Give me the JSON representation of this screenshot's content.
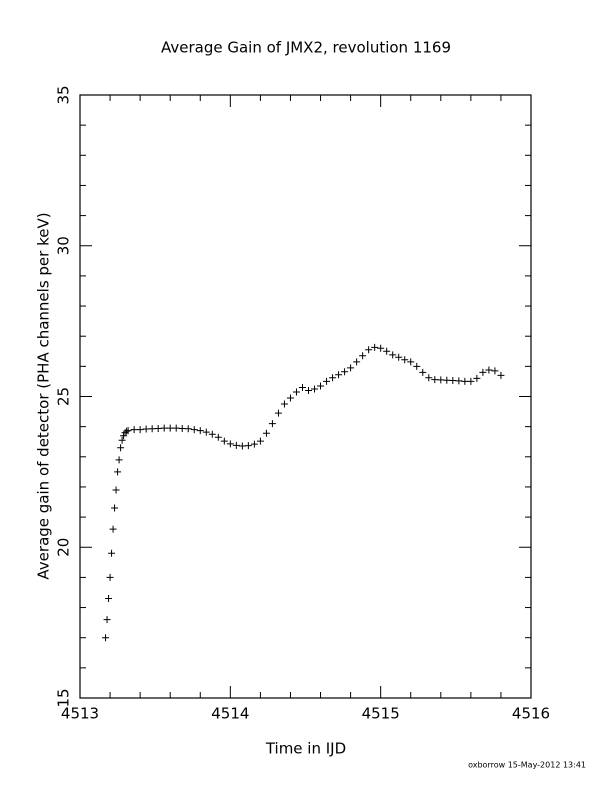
{
  "chart_data": {
    "type": "scatter",
    "title": "Average Gain of JMX2, revolution 1169",
    "x_label": "Time in IJD",
    "y_label": "Average gain of detector (PHA channels per keV)",
    "footer": "oxborrow 15-May-2012 13:41",
    "xlim": [
      4513,
      4516
    ],
    "ylim": [
      15,
      35
    ],
    "xticks": [
      4513,
      4514,
      4515,
      4516
    ],
    "yticks": [
      15,
      20,
      25,
      30,
      35
    ],
    "x_minor_ticks": [
      4513.2,
      4513.4,
      4513.6,
      4513.8,
      4514.2,
      4514.4,
      4514.6,
      4514.8,
      4515.2,
      4515.4,
      4515.6,
      4515.8
    ],
    "y_minor_ticks": [
      16,
      17,
      18,
      19,
      21,
      22,
      23,
      24,
      26,
      27,
      28,
      29,
      31,
      32,
      33,
      34
    ],
    "marker": "plus",
    "color": "#000000",
    "x": [
      4513.17,
      4513.18,
      4513.19,
      4513.2,
      4513.21,
      4513.22,
      4513.23,
      4513.24,
      4513.25,
      4513.26,
      4513.27,
      4513.28,
      4513.29,
      4513.3,
      4513.31,
      4513.32,
      4513.36,
      4513.4,
      4513.44,
      4513.48,
      4513.52,
      4513.56,
      4513.6,
      4513.64,
      4513.68,
      4513.72,
      4513.76,
      4513.8,
      4513.84,
      4513.88,
      4513.92,
      4513.96,
      4514.0,
      4514.04,
      4514.08,
      4514.12,
      4514.16,
      4514.2,
      4514.24,
      4514.28,
      4514.32,
      4514.36,
      4514.4,
      4514.44,
      4514.48,
      4514.52,
      4514.56,
      4514.6,
      4514.64,
      4514.68,
      4514.72,
      4514.76,
      4514.8,
      4514.84,
      4514.88,
      4514.92,
      4514.96,
      4515.0,
      4515.04,
      4515.08,
      4515.12,
      4515.16,
      4515.2,
      4515.24,
      4515.28,
      4515.32,
      4515.36,
      4515.4,
      4515.44,
      4515.48,
      4515.52,
      4515.56,
      4515.6,
      4515.64,
      4515.68,
      4515.72,
      4515.76,
      4515.8
    ],
    "y": [
      17.0,
      17.6,
      18.3,
      19.0,
      19.8,
      20.6,
      21.3,
      21.9,
      22.5,
      22.9,
      23.3,
      23.55,
      23.7,
      23.8,
      23.85,
      23.87,
      23.9,
      23.9,
      23.92,
      23.93,
      23.94,
      23.95,
      23.95,
      23.95,
      23.94,
      23.93,
      23.9,
      23.87,
      23.82,
      23.75,
      23.65,
      23.52,
      23.43,
      23.38,
      23.36,
      23.37,
      23.42,
      23.52,
      23.78,
      24.1,
      24.45,
      24.75,
      24.95,
      25.15,
      25.3,
      25.2,
      25.25,
      25.35,
      25.5,
      25.62,
      25.72,
      25.82,
      25.95,
      26.15,
      26.35,
      26.55,
      26.63,
      26.6,
      26.5,
      26.38,
      26.3,
      26.22,
      26.15,
      26.0,
      25.8,
      25.62,
      25.56,
      25.55,
      25.54,
      25.53,
      25.52,
      25.5,
      25.5,
      25.6,
      25.8,
      25.88,
      25.85,
      25.7
    ]
  }
}
